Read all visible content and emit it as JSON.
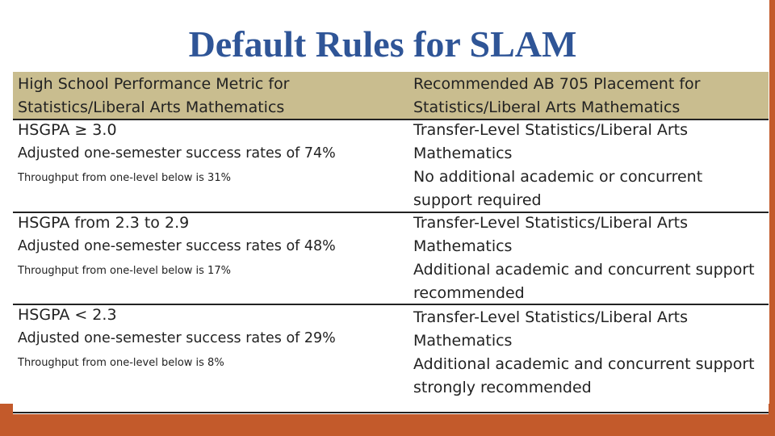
{
  "title": "Default Rules for SLAM",
  "colors": {
    "title": "#2f5597",
    "header_band": "#c9bd8f",
    "accent_bar": "#c35a2b",
    "rule": "#222222"
  },
  "table": {
    "header": {
      "col1_line1": "High School Performance Metric for",
      "col1_line2": "Statistics/Liberal Arts Mathematics",
      "col2_line1": "Recommended AB 705 Placement for",
      "col2_line2": "Statistics/Liberal Arts Mathematics"
    },
    "rows": [
      {
        "metric": "HSGPA ≥ 3.0",
        "success": "Adjusted one-semester success rates of 74%",
        "throughput": "Throughput from one-level below is 31%",
        "placement_line1": "Transfer-Level Statistics/Liberal Arts",
        "placement_line2": "Mathematics",
        "support_line1": "No additional academic or concurrent",
        "support_line2": "support required"
      },
      {
        "metric": "HSGPA from 2.3 to 2.9",
        "success": "Adjusted one-semester success rates of 48%",
        "throughput": "Throughput from one-level below is 17%",
        "placement_line1": "Transfer-Level Statistics/Liberal Arts",
        "placement_line2": "Mathematics",
        "support_line1": "Additional academic and concurrent support",
        "support_line2": "recommended"
      },
      {
        "metric": "HSGPA < 2.3",
        "success": "Adjusted one-semester success rates of 29%",
        "throughput": "Throughput from one-level below is 8%",
        "placement_line1": "Transfer-Level Statistics/Liberal Arts",
        "placement_line2": "Mathematics",
        "support_line1": "Additional academic and concurrent support",
        "support_line2": "strongly recommended"
      }
    ]
  }
}
